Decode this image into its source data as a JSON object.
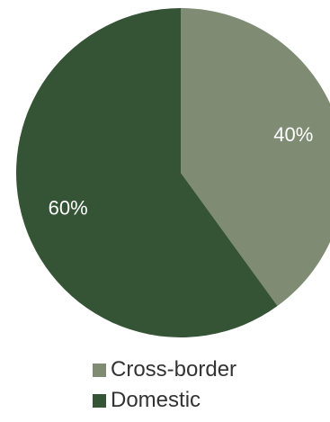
{
  "chart_data": {
    "type": "pie",
    "title": "",
    "slices": [
      {
        "name": "Cross-border",
        "value": 40,
        "label": "40%",
        "color": "#7f8c73"
      },
      {
        "name": "Domestic",
        "value": 60,
        "label": "60%",
        "color": "#355335"
      }
    ],
    "start_angle_deg": 0,
    "direction": "clockwise",
    "legend": {
      "placement": "bottom",
      "items": [
        {
          "label": "Cross-border",
          "color": "#7f8c73"
        },
        {
          "label": "Domestic",
          "color": "#355335"
        }
      ]
    }
  }
}
